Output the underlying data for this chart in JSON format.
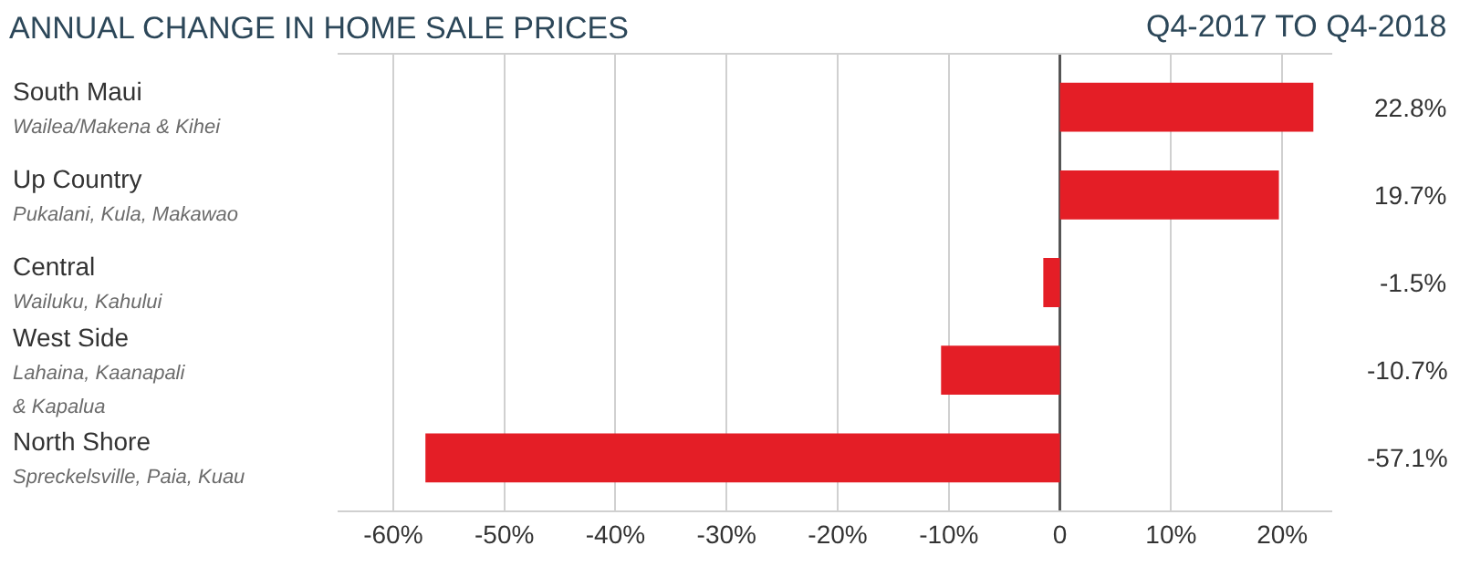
{
  "chart_data": {
    "type": "bar",
    "orientation": "horizontal",
    "title": "ANNUAL CHANGE IN HOME SALE PRICES",
    "subtitle": "Q4-2017 TO Q4-2018",
    "categories": [
      "South Maui\nWailea/Makena & Kihei",
      "Up Country\nPukalani, Kula, Makawao",
      "Central\nWailuku, Kahului",
      "West Side\nLahaina, Kaanapali\n& Kapalua",
      "North Shore\nSpreckelsville, Paia, Kuau"
    ],
    "values": [
      22.8,
      19.7,
      -1.5,
      -10.7,
      -57.1
    ],
    "value_labels": [
      "22.8%",
      "19.7%",
      "-1.5%",
      "-10.7%",
      "-57.1%"
    ],
    "color": "#e41e26",
    "xlim": [
      -65,
      24.5
    ],
    "xticks": [
      {
        "value": -60,
        "label": "-60%"
      },
      {
        "value": -50,
        "label": "-50%"
      },
      {
        "value": -40,
        "label": "-40%"
      },
      {
        "value": -30,
        "label": "-30%"
      },
      {
        "value": -20,
        "label": "-20%"
      },
      {
        "value": -10,
        "label": "-10%"
      },
      0,
      {
        "value": 10,
        "label": "10%"
      },
      {
        "value": 20,
        "label": "20%"
      }
    ],
    "grid": "x"
  }
}
